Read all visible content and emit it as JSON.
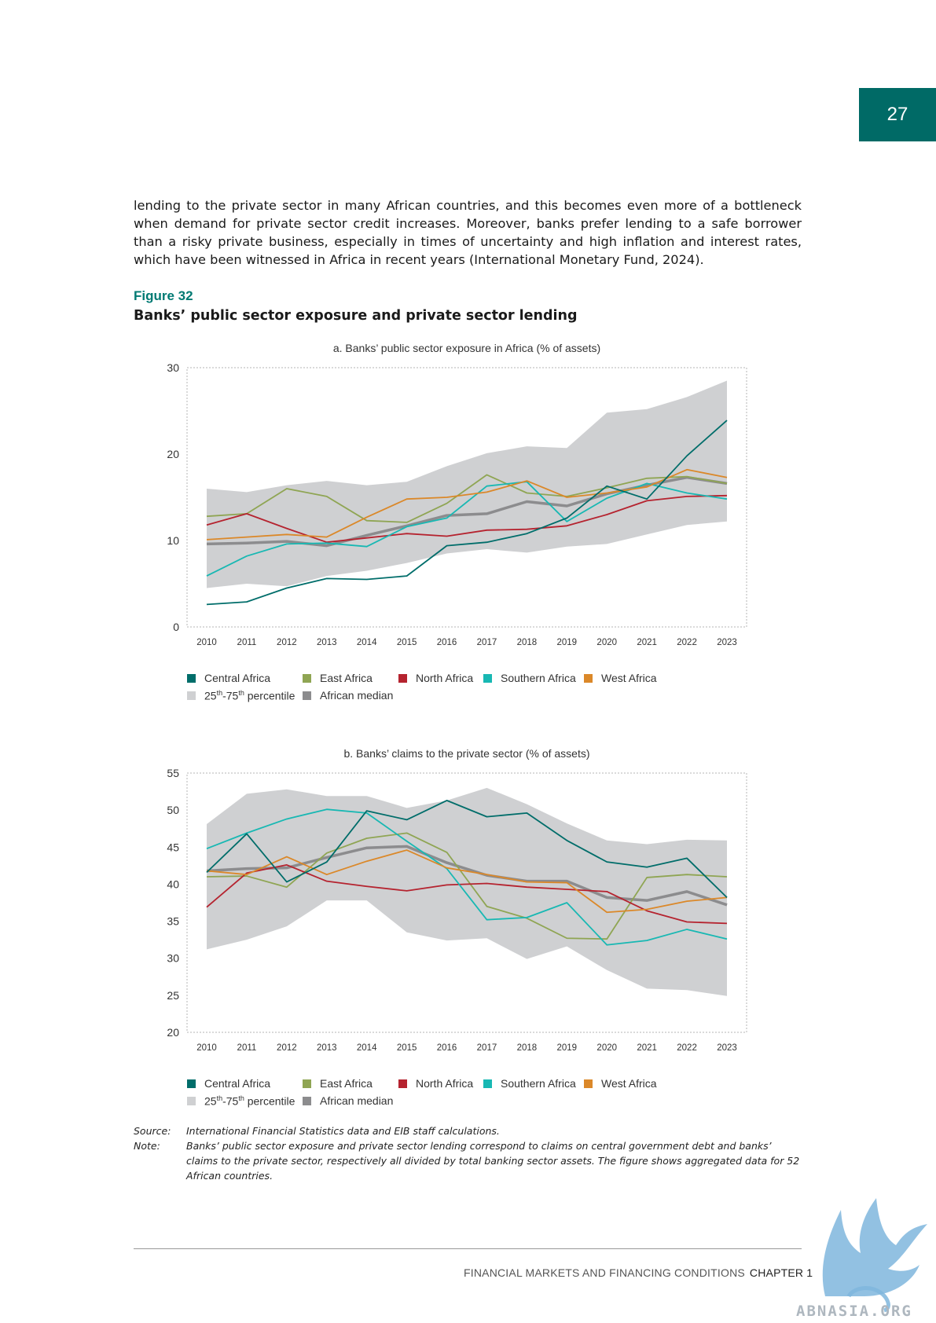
{
  "page": {
    "number": "27"
  },
  "body_text": "lending to the private sector in many African countries, and this becomes even more of a bottleneck when demand for private sector credit increases. Moreover, banks prefer lending to a safe borrower than a risky private business, especially in times of uncertainty and high inflation and interest rates, which have been witnessed in Africa in recent years (International Monetary Fund, 2024).",
  "figure": {
    "label": "Figure 32",
    "title": "Banks’ public sector exposure and private sector lending"
  },
  "legend": {
    "central_africa": "Central Africa",
    "east_africa": "East Africa",
    "north_africa": "North Africa",
    "southern_africa": "Southern Africa",
    "west_africa": "West Africa",
    "percentile_base": "25",
    "percentile_sup1": "th",
    "percentile_mid": "-75",
    "percentile_sup2": "th",
    "percentile_tail": " percentile",
    "african_median": "African median"
  },
  "colors": {
    "central_africa": "#006d6a",
    "east_africa": "#8fa553",
    "north_africa": "#b5232f",
    "southern_africa": "#18b8b3",
    "west_africa": "#db8829",
    "percentile_band": "#cfd0d2",
    "african_median": "#8c8c8e"
  },
  "chart_data": [
    {
      "type": "line",
      "title": "a. Banks’ public sector exposure in Africa (% of assets)",
      "x": [
        "2010",
        "2011",
        "2012",
        "2013",
        "2014",
        "2015",
        "2016",
        "2017",
        "2018",
        "2019",
        "2020",
        "2021",
        "2022",
        "2023"
      ],
      "ylim": [
        0,
        30
      ],
      "yticks": [
        "0",
        "10",
        "20",
        "30"
      ],
      "band": {
        "name": "25th-75th percentile",
        "lower": [
          4.5,
          5.0,
          4.7,
          5.9,
          6.5,
          7.4,
          8.5,
          9.0,
          8.6,
          9.3,
          9.6,
          10.7,
          11.8,
          12.2
        ],
        "upper": [
          16.0,
          15.6,
          16.4,
          16.9,
          16.4,
          16.8,
          18.6,
          20.1,
          20.9,
          20.7,
          24.8,
          25.2,
          26.6,
          28.5
        ]
      },
      "series": [
        {
          "name": "Central Africa",
          "key": "central_africa",
          "values": [
            2.6,
            2.9,
            4.5,
            5.6,
            5.5,
            5.9,
            9.4,
            9.8,
            10.8,
            12.6,
            16.3,
            14.8,
            19.8,
            23.9
          ]
        },
        {
          "name": "East Africa",
          "key": "east_africa",
          "values": [
            12.8,
            13.1,
            16.0,
            15.1,
            12.3,
            12.1,
            14.3,
            17.6,
            15.5,
            15.1,
            16.1,
            17.2,
            17.4,
            16.6
          ]
        },
        {
          "name": "North Africa",
          "key": "north_africa",
          "values": [
            11.8,
            13.1,
            11.4,
            9.8,
            10.3,
            10.8,
            10.5,
            11.2,
            11.3,
            11.7,
            13.0,
            14.6,
            15.1,
            15.2
          ]
        },
        {
          "name": "Southern Africa",
          "key": "southern_africa",
          "values": [
            5.9,
            8.2,
            9.6,
            9.7,
            9.3,
            11.6,
            12.6,
            16.3,
            16.8,
            12.2,
            14.9,
            16.6,
            15.5,
            14.8
          ]
        },
        {
          "name": "West Africa",
          "key": "west_africa",
          "values": [
            10.1,
            10.4,
            10.7,
            10.4,
            12.7,
            14.8,
            15.0,
            15.6,
            16.9,
            15.0,
            15.5,
            16.2,
            18.2,
            17.3
          ]
        },
        {
          "name": "African median",
          "key": "african_median",
          "values": [
            9.6,
            9.7,
            9.9,
            9.4,
            10.6,
            11.7,
            12.9,
            13.1,
            14.5,
            14.0,
            15.4,
            16.4,
            17.3,
            16.6
          ]
        }
      ]
    },
    {
      "type": "line",
      "title": "b. Banks’ claims to the private sector (% of assets)",
      "x": [
        "2010",
        "2011",
        "2012",
        "2013",
        "2014",
        "2015",
        "2016",
        "2017",
        "2018",
        "2019",
        "2020",
        "2021",
        "2022",
        "2023"
      ],
      "ylim": [
        20,
        55
      ],
      "yticks": [
        "20",
        "25",
        "30",
        "35",
        "40",
        "45",
        "50",
        "55"
      ],
      "band": {
        "name": "25th-75th percentile",
        "lower": [
          31.2,
          32.5,
          34.3,
          37.8,
          37.8,
          33.5,
          32.4,
          32.7,
          29.9,
          31.6,
          28.4,
          25.9,
          25.7,
          24.9
        ],
        "upper": [
          48.1,
          52.2,
          52.8,
          51.9,
          51.9,
          50.3,
          51.3,
          53.0,
          50.8,
          48.2,
          45.9,
          45.4,
          46.0,
          45.9
        ]
      },
      "series": [
        {
          "name": "Central Africa",
          "key": "central_africa",
          "values": [
            41.6,
            46.8,
            40.3,
            43.0,
            49.9,
            48.7,
            51.3,
            49.1,
            49.6,
            45.9,
            43.0,
            42.3,
            43.5,
            38.2
          ]
        },
        {
          "name": "East Africa",
          "key": "east_africa",
          "values": [
            41.0,
            41.1,
            39.6,
            44.2,
            46.2,
            46.9,
            44.3,
            37.0,
            35.4,
            32.7,
            32.6,
            40.9,
            41.3,
            41.0
          ]
        },
        {
          "name": "North Africa",
          "key": "north_africa",
          "values": [
            36.9,
            41.5,
            42.6,
            40.4,
            39.7,
            39.1,
            39.9,
            40.1,
            39.6,
            39.3,
            39.0,
            36.4,
            34.9,
            34.7
          ]
        },
        {
          "name": "Southern Africa",
          "key": "southern_africa",
          "values": [
            44.8,
            46.9,
            48.8,
            50.1,
            49.6,
            45.8,
            42.1,
            35.2,
            35.5,
            37.5,
            31.8,
            32.4,
            33.9,
            32.6
          ]
        },
        {
          "name": "West Africa",
          "key": "west_africa",
          "values": [
            41.8,
            41.3,
            43.7,
            41.3,
            43.1,
            44.6,
            42.2,
            41.3,
            40.3,
            40.2,
            36.2,
            36.6,
            37.7,
            38.2
          ]
        },
        {
          "name": "African median",
          "key": "african_median",
          "values": [
            41.8,
            42.1,
            42.2,
            43.6,
            44.9,
            45.1,
            42.9,
            41.2,
            40.4,
            40.4,
            38.2,
            37.8,
            39.0,
            37.2
          ]
        }
      ]
    }
  ],
  "notes": {
    "source_key": "Source:",
    "source_text": "International Financial Statistics data and EIB staff calculations.",
    "note_key": "Note:",
    "note_text": "Banks’ public sector exposure and private sector lending correspond to claims on central government debt and banks’ claims to the private sector, respectively all divided by total banking sector assets. The figure shows aggregated data for 52 African countries."
  },
  "footer": {
    "text": "FINANCIAL MARKETS AND FINANCING CONDITIONS",
    "chapter": "CHAPTER 1"
  },
  "watermark": {
    "text": "ABNASIA.ORG"
  }
}
